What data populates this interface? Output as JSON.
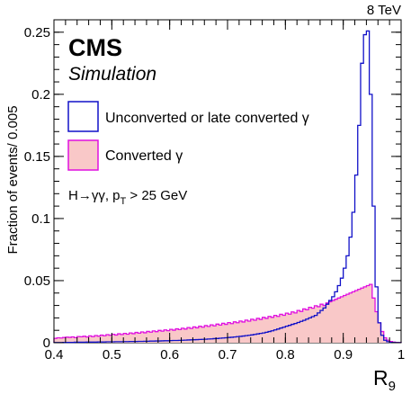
{
  "chart_data": {
    "type": "histogram",
    "energy_label": "8 TeV",
    "experiment": "CMS",
    "status": "Simulation",
    "ylabel": "Fraction of events/ 0.005",
    "xlabel_main": "R",
    "xlabel_sub": "9",
    "xlim": [
      0.4,
      1.0
    ],
    "ylim": [
      0,
      0.26
    ],
    "bin_width": 0.005,
    "x_ticks": [
      {
        "value": 0.4,
        "label": "0.4"
      },
      {
        "value": 0.5,
        "label": "0.5"
      },
      {
        "value": 0.6,
        "label": "0.6"
      },
      {
        "value": 0.7,
        "label": "0.7"
      },
      {
        "value": 0.8,
        "label": "0.8"
      },
      {
        "value": 0.9,
        "label": "0.9"
      },
      {
        "value": 1.0,
        "label": "1"
      }
    ],
    "y_ticks": [
      {
        "value": 0,
        "label": "0"
      },
      {
        "value": 0.05,
        "label": "0.05"
      },
      {
        "value": 0.1,
        "label": "0.1"
      },
      {
        "value": 0.15,
        "label": "0.15"
      },
      {
        "value": 0.2,
        "label": "0.2"
      },
      {
        "value": 0.25,
        "label": "0.25"
      }
    ],
    "annotation": "H→γγ, p",
    "annotation_sub": "T",
    "annotation_tail": " > 25 GeV",
    "legend_position": "top-left",
    "series": [
      {
        "name": "Unconverted or late converted γ",
        "style": "outline",
        "color": "#1010c8",
        "x_start": 0.4,
        "values": [
          0.0002,
          0.0002,
          0.0002,
          0.0003,
          0.0003,
          0.0003,
          0.0003,
          0.0004,
          0.0004,
          0.0004,
          0.0004,
          0.0005,
          0.0005,
          0.0005,
          0.0005,
          0.0006,
          0.0006,
          0.0006,
          0.0007,
          0.0007,
          0.0007,
          0.0008,
          0.0008,
          0.0008,
          0.0009,
          0.0009,
          0.001,
          0.001,
          0.001,
          0.0011,
          0.0011,
          0.0012,
          0.0012,
          0.0013,
          0.0013,
          0.0014,
          0.0014,
          0.0015,
          0.0016,
          0.0016,
          0.0017,
          0.0018,
          0.0018,
          0.0019,
          0.002,
          0.0021,
          0.0022,
          0.0023,
          0.0024,
          0.0025,
          0.0026,
          0.0027,
          0.0028,
          0.003,
          0.0031,
          0.0033,
          0.0034,
          0.0036,
          0.0038,
          0.004,
          0.0042,
          0.0044,
          0.0046,
          0.0049,
          0.0051,
          0.0054,
          0.0057,
          0.006,
          0.0063,
          0.0067,
          0.0071,
          0.0075,
          0.0079,
          0.0084,
          0.009,
          0.0096,
          0.0103,
          0.011,
          0.0118,
          0.0125,
          0.0133,
          0.014,
          0.0148,
          0.0155,
          0.0163,
          0.0172,
          0.018,
          0.019,
          0.02,
          0.021,
          0.022,
          0.024,
          0.026,
          0.028,
          0.031,
          0.034,
          0.037,
          0.041,
          0.046,
          0.052,
          0.06,
          0.07,
          0.085,
          0.105,
          0.135,
          0.175,
          0.225,
          0.248,
          0.251,
          0.2,
          0.11,
          0.045,
          0.016,
          0.006,
          0.002,
          0.0008,
          0.0003,
          0.0002,
          0.0001,
          0.0001
        ]
      },
      {
        "name": "Converted γ",
        "style": "filled",
        "color": "#e010e0",
        "fill": "#f9c8c8",
        "x_start": 0.4,
        "values": [
          0.0035,
          0.004,
          0.0038,
          0.0042,
          0.0045,
          0.0043,
          0.0047,
          0.0041,
          0.005,
          0.0048,
          0.0052,
          0.0046,
          0.0055,
          0.0049,
          0.0058,
          0.0053,
          0.0061,
          0.0056,
          0.0065,
          0.006,
          0.0068,
          0.0062,
          0.0072,
          0.0066,
          0.0075,
          0.0069,
          0.0079,
          0.0073,
          0.0083,
          0.0077,
          0.0087,
          0.008,
          0.0091,
          0.0085,
          0.0095,
          0.0089,
          0.0099,
          0.0093,
          0.0103,
          0.0097,
          0.0108,
          0.0101,
          0.0112,
          0.0106,
          0.0117,
          0.011,
          0.0122,
          0.0115,
          0.0127,
          0.012,
          0.0133,
          0.0125,
          0.0138,
          0.0131,
          0.0144,
          0.0136,
          0.015,
          0.0142,
          0.0156,
          0.0148,
          0.0162,
          0.0154,
          0.0168,
          0.0161,
          0.0175,
          0.0167,
          0.0182,
          0.0174,
          0.0189,
          0.0181,
          0.0196,
          0.0188,
          0.0204,
          0.0196,
          0.0212,
          0.0204,
          0.022,
          0.0212,
          0.0229,
          0.0221,
          0.0238,
          0.023,
          0.0248,
          0.024,
          0.026,
          0.0252,
          0.0272,
          0.0265,
          0.0285,
          0.0278,
          0.0298,
          0.029,
          0.031,
          0.03,
          0.032,
          0.033,
          0.034,
          0.035,
          0.036,
          0.037,
          0.038,
          0.039,
          0.04,
          0.041,
          0.042,
          0.043,
          0.044,
          0.045,
          0.046,
          0.047,
          0.036,
          0.025,
          0.016,
          0.009,
          0.004,
          0.002,
          0.001,
          0.0005,
          0.0003,
          0.0002
        ]
      }
    ]
  }
}
